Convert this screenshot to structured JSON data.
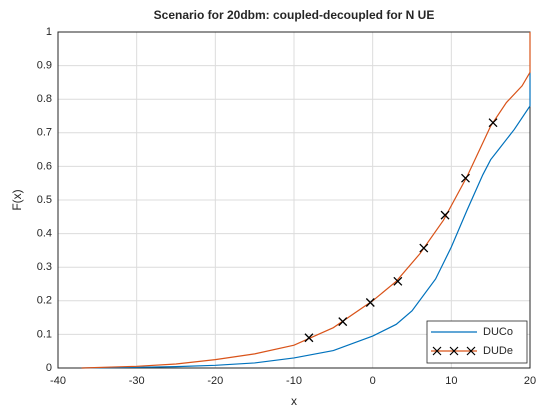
{
  "chart_data": {
    "type": "line",
    "title": "Scenario for 20dbm: coupled-decoupled for N UE",
    "x_label": "x",
    "y_label": "F(x)",
    "xlim": [
      -40,
      20
    ],
    "xticks": [
      -40,
      -30,
      -20,
      -10,
      0,
      10,
      20
    ],
    "ylim": [
      0,
      1
    ],
    "yticks": [
      0,
      0.1,
      0.2,
      0.3,
      0.4,
      0.5,
      0.6,
      0.7,
      0.8,
      0.9,
      1
    ],
    "grid": true,
    "legend": "southeast",
    "series": [
      {
        "name": "DUCo",
        "color": "#0072BD",
        "x": [
          -37,
          -30,
          -25,
          -20,
          -15,
          -10,
          -5,
          0,
          3,
          5,
          8,
          10,
          12,
          14,
          15,
          16,
          18,
          20,
          20
        ],
        "values": [
          0,
          0.002,
          0.004,
          0.008,
          0.015,
          0.03,
          0.052,
          0.095,
          0.13,
          0.17,
          0.265,
          0.36,
          0.47,
          0.575,
          0.62,
          0.65,
          0.71,
          0.78,
          0.88
        ]
      },
      {
        "name": "DUDe",
        "color": "#D95319",
        "x": [
          -37,
          -30,
          -25,
          -20,
          -15,
          -10,
          -5,
          0,
          3,
          6,
          9,
          12,
          15,
          17,
          19,
          20,
          20
        ],
        "values": [
          0,
          0.005,
          0.012,
          0.025,
          0.042,
          0.068,
          0.12,
          0.2,
          0.258,
          0.34,
          0.44,
          0.57,
          0.72,
          0.79,
          0.84,
          0.88,
          1
        ],
        "markers": {
          "x": [
            -8.1,
            -3.8,
            -0.3,
            3.2,
            6.5,
            9.2,
            11.8,
            15.3
          ],
          "values": [
            0.09,
            0.138,
            0.195,
            0.258,
            0.357,
            0.455,
            0.565,
            0.73
          ]
        }
      }
    ]
  }
}
